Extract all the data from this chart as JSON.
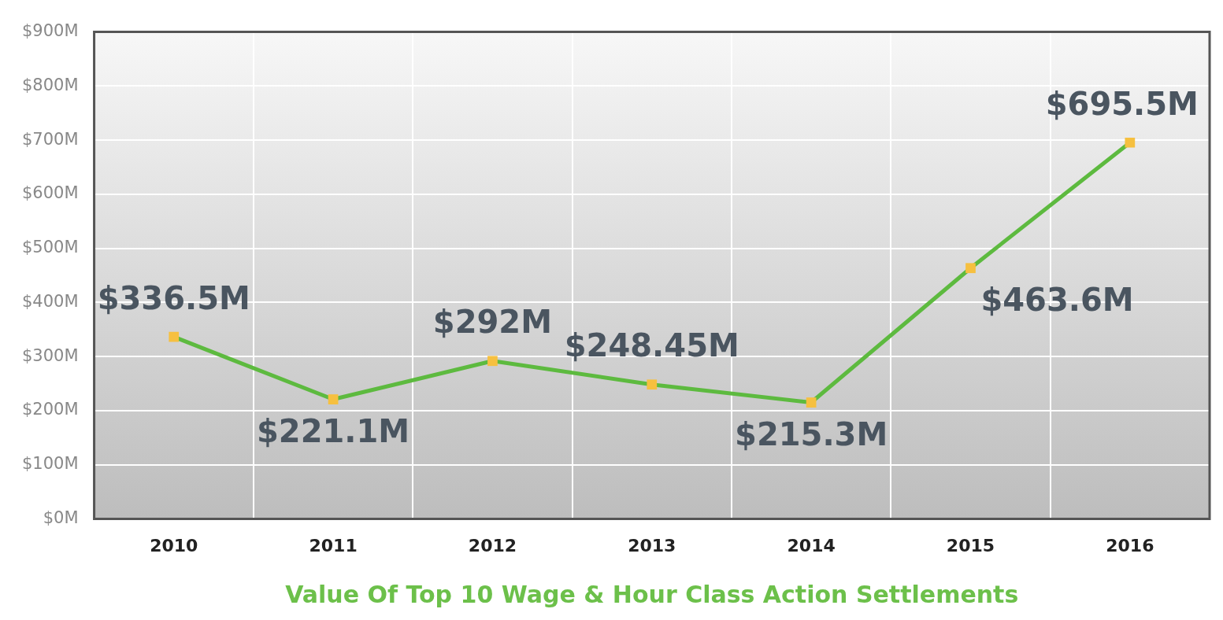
{
  "chart_data": {
    "type": "line",
    "xlabel": "Value Of Top 10 Wage & Hour Class Action Settlements",
    "categories": [
      "2010",
      "2011",
      "2012",
      "2013",
      "2014",
      "2015",
      "2016"
    ],
    "series": [
      {
        "color": "#5dba3f",
        "colors": [
          "#f6c040",
          "#f6c040",
          "#f6c040",
          "#f6c040",
          "#f6c040",
          "#f6c040",
          "#f6c040"
        ],
        "values": [
          336.5,
          221.1,
          292,
          248.45,
          215.3,
          463.6,
          695.5
        ]
      }
    ],
    "ylim": [
      0,
      900
    ],
    "yticks": [
      {
        "value": 0,
        "label": "$0M"
      },
      {
        "value": 100,
        "label": "$100M"
      },
      {
        "value": 200,
        "label": "$200M"
      },
      {
        "value": 300,
        "label": "$300M"
      },
      {
        "value": 400,
        "label": "$400M"
      },
      {
        "value": 500,
        "label": "$500M"
      },
      {
        "value": 600,
        "label": "$600M"
      },
      {
        "value": 700,
        "label": "$700M"
      },
      {
        "value": 800,
        "label": "$800M"
      },
      {
        "value": 900,
        "label": "$900M"
      }
    ],
    "value_labels": [
      "$336.5M",
      "$221.1M",
      "$292M",
      "$248.45M",
      "$215.3M",
      "$463.6M",
      "$695.5M"
    ],
    "grid": true,
    "marker": "square",
    "line_style": "solid",
    "legend": false
  }
}
